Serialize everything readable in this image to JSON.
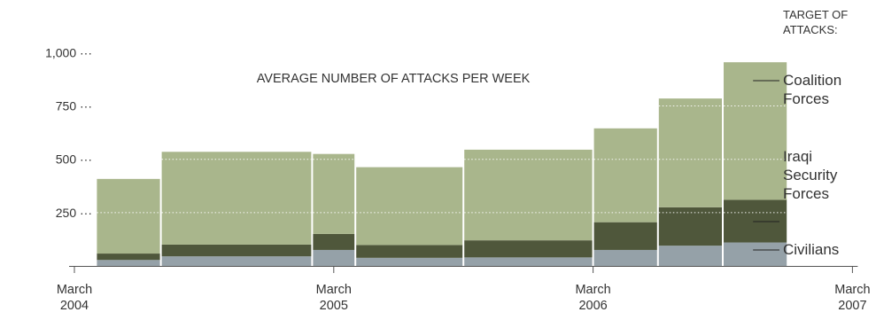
{
  "chart_data": {
    "type": "bar",
    "stacked": true,
    "variable_width": true,
    "title": "AVERAGE NUMBER OF ATTACKS PER WEEK",
    "ylim": [
      0,
      1000
    ],
    "yticks": [
      250,
      500,
      750,
      1000
    ],
    "ytick_labels": [
      "250 ···",
      "500 ···",
      "750 ···",
      "1,000 ···"
    ],
    "grid": "dotted at 250, 500, 750 inside bars",
    "x_ticks": [
      {
        "date": "2004-03",
        "line1": "March",
        "line2": "2004"
      },
      {
        "date": "2005-03",
        "line1": "March",
        "line2": "2005"
      },
      {
        "date": "2006-03",
        "line1": "March",
        "line2": "2006"
      },
      {
        "date": "2007-03",
        "line1": "March",
        "line2": "2007"
      }
    ],
    "xlim": [
      "2004-03",
      "2007-03"
    ],
    "periods": [
      {
        "start": "2004-04",
        "end": "2004-06",
        "civilians": 28,
        "iraqi_security_forces": 30,
        "coalition_forces": 350
      },
      {
        "start": "2004-07",
        "end": "2005-01",
        "civilians": 45,
        "iraqi_security_forces": 55,
        "coalition_forces": 435
      },
      {
        "start": "2005-02",
        "end": "2005-03",
        "civilians": 75,
        "iraqi_security_forces": 75,
        "coalition_forces": 375
      },
      {
        "start": "2005-04",
        "end": "2005-08",
        "civilians": 38,
        "iraqi_security_forces": 60,
        "coalition_forces": 365
      },
      {
        "start": "2005-09",
        "end": "2006-02",
        "civilians": 40,
        "iraqi_security_forces": 80,
        "coalition_forces": 425
      },
      {
        "start": "2006-03",
        "end": "2006-05",
        "civilians": 75,
        "iraqi_security_forces": 130,
        "coalition_forces": 440
      },
      {
        "start": "2006-06",
        "end": "2006-08",
        "civilians": 95,
        "iraqi_security_forces": 180,
        "coalition_forces": 510
      },
      {
        "start": "2006-09",
        "end": "2006-11",
        "civilians": 110,
        "iraqi_security_forces": 200,
        "coalition_forces": 645
      }
    ],
    "series": [
      {
        "key": "civilians",
        "name": "Civilians",
        "color": "#95a1a8"
      },
      {
        "key": "iraqi_security_forces",
        "name": "Iraqi Security Forces",
        "color": "#4f573b"
      },
      {
        "key": "coalition_forces",
        "name": "Coalition Forces",
        "color": "#a9b68c"
      }
    ],
    "legend": {
      "heading_lines": [
        "TARGET OF",
        "ATTACKS:"
      ],
      "placement": "right",
      "entries": [
        {
          "key": "coalition_forces",
          "lines": [
            "Coalition",
            "Forces"
          ]
        },
        {
          "key": "iraqi_security_forces",
          "lines": [
            "Iraqi",
            "Security",
            "Forces"
          ]
        },
        {
          "key": "civilians",
          "lines": [
            "Civilians"
          ]
        }
      ]
    }
  }
}
